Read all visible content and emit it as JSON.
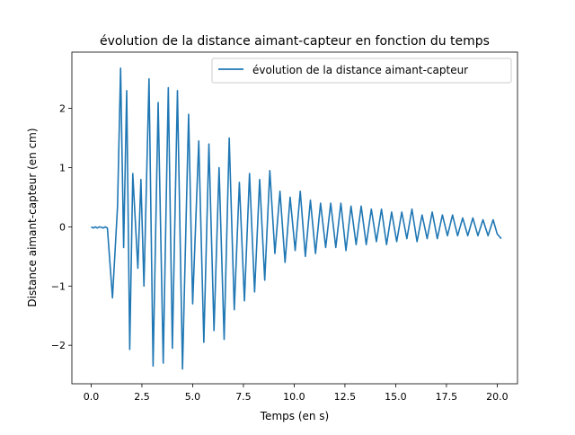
{
  "chart_data": {
    "type": "line",
    "title": "évolution de la distance aimant-capteur en fonction du temps",
    "xlabel": "Temps (en s)",
    "ylabel": "Distance aimant-capteur (en cm)",
    "xlim": [
      -0.95,
      21.0
    ],
    "ylim": [
      -2.65,
      2.95
    ],
    "xticks": [
      0.0,
      2.5,
      5.0,
      7.5,
      10.0,
      12.5,
      15.0,
      17.5,
      20.0
    ],
    "xtick_labels": [
      "0.0",
      "2.5",
      "5.0",
      "7.5",
      "10.0",
      "12.5",
      "15.0",
      "17.5",
      "20.0"
    ],
    "yticks": [
      -2,
      -1,
      0,
      1,
      2
    ],
    "ytick_labels": [
      "−2",
      "−1",
      "0",
      "1",
      "2"
    ],
    "grid": false,
    "legend_position": "top-right",
    "series": [
      {
        "name": "évolution de la distance aimant-capteur",
        "color": "#1f77b4",
        "x": [
          0.0,
          0.1,
          0.2,
          0.3,
          0.4,
          0.5,
          0.6,
          0.7,
          0.8,
          1.05,
          1.3,
          1.45,
          1.6,
          1.75,
          1.9,
          2.05,
          2.3,
          2.45,
          2.6,
          2.85,
          3.05,
          3.3,
          3.55,
          3.8,
          4.0,
          4.25,
          4.5,
          4.8,
          5.0,
          5.3,
          5.55,
          5.8,
          6.05,
          6.3,
          6.55,
          6.8,
          7.05,
          7.3,
          7.55,
          7.8,
          8.05,
          8.3,
          8.55,
          8.8,
          9.05,
          9.3,
          9.55,
          9.8,
          10.05,
          10.3,
          10.55,
          10.8,
          11.05,
          11.3,
          11.55,
          11.8,
          12.05,
          12.3,
          12.55,
          12.8,
          13.05,
          13.3,
          13.55,
          13.8,
          14.05,
          14.3,
          14.55,
          14.8,
          15.05,
          15.3,
          15.55,
          15.8,
          16.05,
          16.3,
          16.55,
          16.8,
          17.05,
          17.3,
          17.55,
          17.8,
          18.05,
          18.3,
          18.55,
          18.8,
          19.05,
          19.3,
          19.55,
          19.8,
          20.0,
          20.2
        ],
        "y": [
          0.0,
          -0.02,
          0.0,
          -0.02,
          0.0,
          -0.01,
          -0.02,
          0.0,
          -0.02,
          -1.2,
          0.35,
          2.68,
          -0.35,
          2.3,
          -2.07,
          0.9,
          -0.7,
          0.8,
          -1.0,
          2.5,
          -2.35,
          2.1,
          -2.3,
          2.35,
          -2.05,
          2.3,
          -2.4,
          1.9,
          -1.3,
          1.45,
          -1.95,
          1.4,
          -1.75,
          1.0,
          -1.9,
          1.5,
          -1.4,
          0.75,
          -1.25,
          0.9,
          -1.1,
          0.8,
          -0.9,
          0.95,
          -0.45,
          0.6,
          -0.6,
          0.5,
          -0.4,
          0.6,
          -0.5,
          0.45,
          -0.45,
          0.4,
          -0.35,
          0.4,
          -0.35,
          0.4,
          -0.4,
          0.35,
          -0.3,
          0.35,
          -0.3,
          0.3,
          -0.25,
          0.3,
          -0.3,
          0.25,
          -0.25,
          0.25,
          -0.2,
          0.3,
          -0.25,
          0.2,
          -0.2,
          0.25,
          -0.2,
          0.2,
          -0.15,
          0.2,
          -0.15,
          0.15,
          -0.15,
          0.15,
          -0.15,
          0.12,
          -0.15,
          0.12,
          -0.12,
          -0.2
        ]
      }
    ]
  }
}
